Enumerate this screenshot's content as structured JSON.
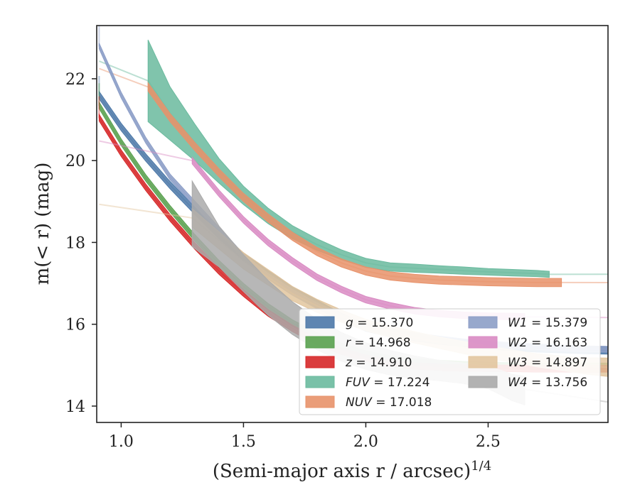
{
  "chart_data": {
    "type": "line",
    "title": "",
    "xlabel": "(Semi-major axis r / arcsec)",
    "xlabel_sup": "1/4",
    "ylabel": "m(< r) (mag)",
    "xlim": [
      0.9,
      2.99
    ],
    "ylim": [
      23.3,
      13.6
    ],
    "y_inverted": true,
    "xticks": [
      1.0,
      1.5,
      2.0,
      2.5
    ],
    "xtick_labels": [
      "1.0",
      "1.5",
      "2.0",
      "2.5"
    ],
    "yticks": [
      14,
      16,
      18,
      20,
      22
    ],
    "ytick_labels": [
      "14",
      "16",
      "18",
      "20",
      "22"
    ],
    "legend_position": "lower-right",
    "series": [
      {
        "name": "g = 15.370",
        "color": "#4C78A8",
        "band": {
          "x": [
            0.91,
            1.0,
            1.1,
            1.2,
            1.3,
            1.4,
            1.5,
            1.6,
            1.7,
            1.8,
            1.9,
            2.0,
            2.1,
            2.2,
            2.3,
            2.4,
            2.5,
            2.6,
            2.7,
            2.8,
            2.9,
            2.99
          ],
          "y": [
            21.6,
            20.82,
            20.08,
            19.4,
            18.78,
            18.18,
            17.65,
            17.22,
            16.83,
            16.5,
            16.18,
            15.92,
            15.78,
            15.68,
            15.6,
            15.54,
            15.48,
            15.44,
            15.41,
            15.39,
            15.37,
            15.36
          ],
          "width": 0.18
        },
        "model": {
          "x": [
            0.91,
            2.99
          ],
          "asymptote": 15.37
        }
      },
      {
        "name": "r = 14.968",
        "color": "#59A14F",
        "band": {
          "x": [
            0.91,
            1.0,
            1.1,
            1.2,
            1.3,
            1.4,
            1.5,
            1.6,
            1.7,
            1.8,
            1.9,
            2.0,
            2.1,
            2.2,
            2.3,
            2.4,
            2.5,
            2.6,
            2.7,
            2.8,
            2.9,
            2.99
          ],
          "y": [
            21.35,
            20.45,
            19.58,
            18.82,
            18.12,
            17.48,
            16.92,
            16.43,
            16.03,
            15.72,
            15.46,
            15.27,
            15.15,
            15.08,
            15.04,
            15.01,
            14.99,
            14.98,
            14.97,
            14.97,
            14.97,
            14.97
          ],
          "width": 0.16
        },
        "model": {
          "asymptote": 14.968
        }
      },
      {
        "name": "z = 14.910",
        "color": "#D62728",
        "band": {
          "x": [
            0.91,
            1.0,
            1.1,
            1.2,
            1.3,
            1.4,
            1.5,
            1.6,
            1.7,
            1.8,
            1.9,
            2.0,
            2.1,
            2.2,
            2.3,
            2.4,
            2.5,
            2.6,
            2.7,
            2.8,
            2.9,
            2.99
          ],
          "y": [
            21.05,
            20.18,
            19.35,
            18.6,
            17.92,
            17.3,
            16.76,
            16.28,
            15.9,
            15.58,
            15.34,
            15.17,
            15.05,
            14.98,
            14.95,
            14.93,
            14.92,
            14.92,
            14.91,
            14.91,
            14.91,
            14.91
          ],
          "width": 0.16
        },
        "model": {
          "asymptote": 14.91
        }
      },
      {
        "name": "FUV = 17.224",
        "color": "#6ABA9E",
        "band": {
          "x": [
            1.11,
            1.2,
            1.3,
            1.4,
            1.5,
            1.6,
            1.7,
            1.8,
            1.9,
            2.0,
            2.1,
            2.2,
            2.3,
            2.4,
            2.5,
            2.6,
            2.7,
            2.75
          ],
          "y": [
            21.95,
            21.15,
            20.45,
            19.75,
            19.15,
            18.65,
            18.25,
            17.95,
            17.7,
            17.5,
            17.4,
            17.37,
            17.34,
            17.31,
            17.28,
            17.26,
            17.24,
            17.22
          ],
          "width": [
            2.0,
            1.3,
            0.9,
            0.6,
            0.45,
            0.38,
            0.32,
            0.28,
            0.24,
            0.22,
            0.2,
            0.2,
            0.18,
            0.18,
            0.16,
            0.16,
            0.15,
            0.15
          ]
        },
        "model": {
          "asymptote": 17.224
        }
      },
      {
        "name": "NUV = 17.018",
        "color": "#E8926A",
        "band": {
          "x": [
            1.11,
            1.2,
            1.3,
            1.4,
            1.5,
            1.6,
            1.7,
            1.8,
            1.9,
            2.0,
            2.1,
            2.2,
            2.3,
            2.4,
            2.5,
            2.6,
            2.7,
            2.8
          ],
          "y": [
            21.8,
            21.05,
            20.35,
            19.7,
            19.1,
            18.6,
            18.15,
            17.78,
            17.5,
            17.3,
            17.18,
            17.12,
            17.08,
            17.06,
            17.04,
            17.03,
            17.02,
            17.02
          ],
          "width": 0.2
        },
        "model": {
          "asymptote": 17.018
        }
      },
      {
        "name": "W1 = 15.379",
        "color": "#8C9EC7",
        "band": {
          "x": [
            0.91,
            1.0,
            1.1,
            1.2,
            1.3,
            1.4,
            1.5,
            1.6,
            1.7,
            1.8,
            1.9,
            2.0,
            2.1,
            2.2,
            2.3,
            2.4,
            2.5,
            2.6,
            2.7,
            2.8,
            2.9,
            2.99
          ],
          "y": [
            22.8,
            21.6,
            20.5,
            19.6,
            18.95,
            18.3,
            17.65,
            17.17,
            16.78,
            16.45,
            16.17,
            15.97,
            15.82,
            15.72,
            15.64,
            15.57,
            15.52,
            15.48,
            15.45,
            15.42,
            15.4,
            15.39
          ],
          "width": 0.14
        },
        "model": {
          "asymptote": 15.379
        }
      },
      {
        "name": "W2 = 16.163",
        "color": "#D98BC3",
        "band": {
          "x": [
            1.29,
            1.4,
            1.5,
            1.6,
            1.7,
            1.8,
            1.9,
            2.0,
            2.1,
            2.2,
            2.3,
            2.4,
            2.5,
            2.6,
            2.65
          ],
          "y": [
            20.0,
            19.2,
            18.55,
            18.0,
            17.55,
            17.15,
            16.85,
            16.6,
            16.45,
            16.33,
            16.26,
            16.22,
            16.2,
            16.19,
            16.18
          ],
          "width": 0.16
        },
        "model": {
          "asymptote": 16.163
        }
      },
      {
        "name": "W3 = 14.897",
        "color": "#E2C59E",
        "band": {
          "x": [
            1.29,
            1.4,
            1.5,
            1.6,
            1.7,
            1.8,
            1.9,
            2.0,
            2.1,
            2.2,
            2.3,
            2.4,
            2.5,
            2.6,
            2.7,
            2.8,
            2.9,
            2.99
          ],
          "y": [
            18.6,
            18.05,
            17.55,
            17.15,
            16.75,
            16.45,
            16.2,
            15.98,
            15.82,
            15.68,
            15.55,
            15.43,
            15.32,
            15.22,
            15.12,
            15.05,
            14.98,
            14.95
          ],
          "width": [
            0.45,
            0.42,
            0.4,
            0.38,
            0.35,
            0.32,
            0.3,
            0.28,
            0.28,
            0.28,
            0.28,
            0.3,
            0.3,
            0.3,
            0.32,
            0.35,
            0.4,
            0.45
          ]
        },
        "model": {
          "asymptote": 14.897
        }
      },
      {
        "name": "W4 = 13.756",
        "color": "#AAAAAA",
        "band": {
          "x": [
            1.29,
            1.4,
            1.5,
            1.6,
            1.7,
            1.8,
            1.9,
            2.0,
            2.1,
            2.2,
            2.3,
            2.4,
            2.5,
            2.55,
            2.6,
            2.65
          ],
          "y": [
            18.7,
            17.9,
            17.25,
            16.65,
            16.15,
            15.75,
            15.45,
            15.22,
            15.06,
            14.95,
            14.87,
            14.8,
            14.7,
            14.58,
            14.45,
            14.38
          ],
          "width": [
            1.6,
            1.0,
            0.9,
            0.85,
            0.8,
            0.75,
            0.7,
            0.65,
            0.6,
            0.55,
            0.5,
            0.5,
            0.55,
            0.6,
            0.65,
            0.7
          ]
        },
        "model": {
          "x": [
            2.5,
            2.99
          ],
          "y": [
            14.55,
            14.1
          ]
        }
      }
    ],
    "legend": {
      "col1": [
        {
          "symbol": "g",
          "value": "= 15.370",
          "color": "#4C78A8"
        },
        {
          "symbol": "r",
          "value": "= 14.968",
          "color": "#59A14F"
        },
        {
          "symbol": "z",
          "value": "= 14.910",
          "color": "#D62728"
        },
        {
          "symbol": "FUV",
          "value": "= 17.224",
          "color": "#6ABA9E"
        },
        {
          "symbol": "NUV",
          "value": "= 17.018",
          "color": "#E8926A"
        }
      ],
      "col2": [
        {
          "symbol": "W1",
          "value": "= 15.379",
          "color": "#8C9EC7"
        },
        {
          "symbol": "W2",
          "value": "= 16.163",
          "color": "#D98BC3"
        },
        {
          "symbol": "W3",
          "value": "= 14.897",
          "color": "#E2C59E"
        },
        {
          "symbol": "W4",
          "value": "= 13.756",
          "color": "#AAAAAA"
        }
      ]
    }
  }
}
